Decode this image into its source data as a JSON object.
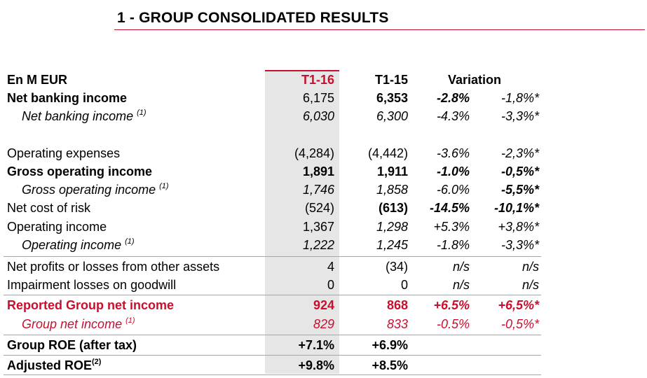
{
  "title": "1 - GROUP CONSOLIDATED RESULTS",
  "header": {
    "label": "En M EUR",
    "col1": "T1-16",
    "col2": "T1-15",
    "col3": "Variation"
  },
  "rows": [
    {
      "label": "Net banking income",
      "sup": "",
      "v1": "6,175",
      "v2": "6,353",
      "v3": "-2.8%",
      "v4": "-1,8%*"
    },
    {
      "label": "Net banking income",
      "sup": "(1)",
      "v1": "6,030",
      "v2": "6,300",
      "v3": "-4.3%",
      "v4": "-3,3%*"
    },
    {
      "label": "Operating expenses",
      "sup": "",
      "v1": "(4,284)",
      "v2": "(4,442)",
      "v3": "-3.6%",
      "v4": "-2,3%*"
    },
    {
      "label": "Gross operating income",
      "sup": "",
      "v1": "1,891",
      "v2": "1,911",
      "v3": "-1.0%",
      "v4": "-0,5%*"
    },
    {
      "label": "Gross operating income",
      "sup": "(1)",
      "v1": "1,746",
      "v2": "1,858",
      "v3": "-6.0%",
      "v4": "-5,5%*"
    },
    {
      "label": "Net cost of risk",
      "sup": "",
      "v1": "(524)",
      "v2": "(613)",
      "v3": "-14.5%",
      "v4": "-10,1%*"
    },
    {
      "label": "Operating income",
      "sup": "",
      "v1": "1,367",
      "v2": "1,298",
      "v3": "+5.3%",
      "v4": "+3,8%*"
    },
    {
      "label": "Operating income",
      "sup": "(1)",
      "v1": "1,222",
      "v2": "1,245",
      "v3": "-1.8%",
      "v4": "-3,3%*"
    },
    {
      "label": "Net profits or losses from other assets",
      "sup": "",
      "v1": "4",
      "v2": "(34)",
      "v3": "n/s",
      "v4": "n/s"
    },
    {
      "label": "Impairment losses on goodwill",
      "sup": "",
      "v1": "0",
      "v2": "0",
      "v3": "n/s",
      "v4": "n/s"
    },
    {
      "label": "Reported Group net income",
      "sup": "",
      "v1": "924",
      "v2": "868",
      "v3": "+6.5%",
      "v4": "+6,5%*"
    },
    {
      "label": "Group net income",
      "sup": "(1)",
      "v1": "829",
      "v2": "833",
      "v3": "-0.5%",
      "v4": "-0,5%*"
    },
    {
      "label": "Group ROE (after tax)",
      "sup": "",
      "v1": "+7.1%",
      "v2": "+6.9%",
      "v3": "",
      "v4": ""
    },
    {
      "label": "Adjusted ROE",
      "sup": "(2)",
      "v1": "+9.8%",
      "v2": "+8.5%",
      "v3": "",
      "v4": ""
    }
  ],
  "colors": {
    "accent": "#c8102e",
    "shade": "#e6e6e6",
    "rule": "#a6a6a6"
  }
}
